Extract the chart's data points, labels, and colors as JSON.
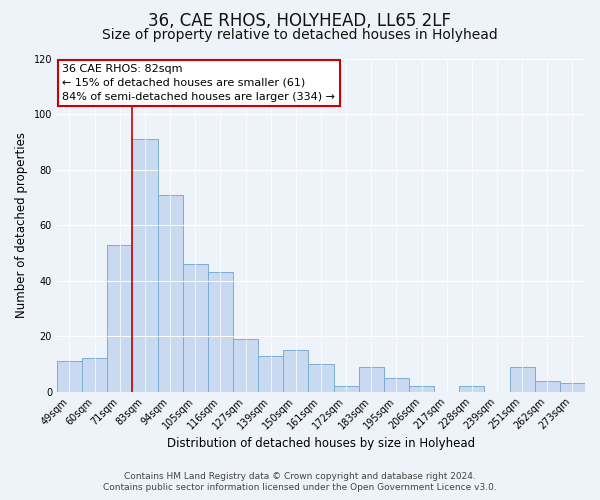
{
  "title": "36, CAE RHOS, HOLYHEAD, LL65 2LF",
  "subtitle": "Size of property relative to detached houses in Holyhead",
  "xlabel": "Distribution of detached houses by size in Holyhead",
  "ylabel": "Number of detached properties",
  "bar_labels": [
    "49sqm",
    "60sqm",
    "71sqm",
    "83sqm",
    "94sqm",
    "105sqm",
    "116sqm",
    "127sqm",
    "139sqm",
    "150sqm",
    "161sqm",
    "172sqm",
    "183sqm",
    "195sqm",
    "206sqm",
    "217sqm",
    "228sqm",
    "239sqm",
    "251sqm",
    "262sqm",
    "273sqm"
  ],
  "bar_values": [
    11,
    12,
    53,
    91,
    71,
    46,
    43,
    19,
    13,
    15,
    10,
    2,
    9,
    5,
    2,
    0,
    2,
    0,
    9,
    4,
    3
  ],
  "bar_color": "#c9d9ef",
  "bar_edge_color": "#7aadd4",
  "ylim": [
    0,
    120
  ],
  "yticks": [
    0,
    20,
    40,
    60,
    80,
    100,
    120
  ],
  "vline_color": "#cc0000",
  "vline_bar_index": 3,
  "annotation_title": "36 CAE RHOS: 82sqm",
  "annotation_line1": "← 15% of detached houses are smaller (61)",
  "annotation_line2": "84% of semi-detached houses are larger (334) →",
  "annotation_box_color": "#ffffff",
  "annotation_box_edge": "#cc0000",
  "footer1": "Contains HM Land Registry data © Crown copyright and database right 2024.",
  "footer2": "Contains public sector information licensed under the Open Government Licence v3.0.",
  "background_color": "#eef2f9",
  "plot_background": "#eef2f9",
  "title_fontsize": 12,
  "subtitle_fontsize": 10,
  "footer_fontsize": 6.5
}
